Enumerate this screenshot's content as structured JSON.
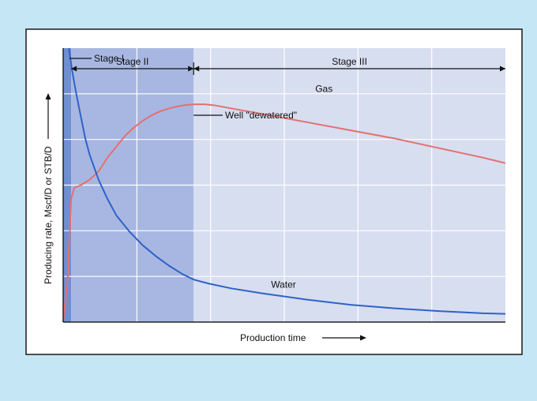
{
  "chart_data": {
    "type": "line",
    "xlabel": "Production time",
    "ylabel": "Producing rate, Mscf/D or STB/D",
    "xlim": [
      0,
      100
    ],
    "ylim": [
      0,
      100
    ],
    "grid": true,
    "stages": [
      {
        "label": "Stage I",
        "x_start": 0,
        "x_end": 1.8,
        "color": "#6f8fd0"
      },
      {
        "label": "Stage II",
        "x_start": 1.8,
        "x_end": 29.5,
        "color": "#a7b7e2"
      },
      {
        "label": "Stage III",
        "x_start": 29.5,
        "x_end": 100,
        "color": "#d7def0"
      }
    ],
    "annotations": [
      {
        "text": "Well \"dewatered\"",
        "x": 29.5
      }
    ],
    "series": [
      {
        "name": "Gas",
        "color": "#e66f6f",
        "x": [
          0,
          1,
          1.8,
          2.5,
          4,
          6,
          8,
          10,
          12,
          14,
          16,
          18,
          20,
          22,
          24,
          26,
          28,
          30,
          32,
          34,
          38,
          45,
          55,
          65,
          75,
          85,
          95,
          100
        ],
        "y": [
          0,
          15,
          45,
          49,
          50,
          52,
          55,
          60,
          64,
          68,
          71,
          73.5,
          75.5,
          77,
          78,
          78.8,
          79.3,
          79.5,
          79.5,
          79.2,
          78,
          76,
          73,
          70,
          67,
          63.5,
          60,
          58
        ]
      },
      {
        "name": "Water",
        "color": "#2f62c8",
        "x": [
          1.3,
          2,
          3,
          4,
          5,
          6,
          8,
          10,
          12,
          15,
          18,
          21,
          24,
          27,
          29.5,
          33,
          38,
          45,
          55,
          65,
          75,
          85,
          95,
          100
        ],
        "y": [
          100,
          92,
          83,
          75,
          67,
          61,
          52,
          45,
          39,
          33,
          28,
          24,
          20.5,
          17.5,
          15.5,
          14,
          12.3,
          10.5,
          8.2,
          6.3,
          5,
          4,
          3.2,
          3
        ]
      }
    ]
  }
}
